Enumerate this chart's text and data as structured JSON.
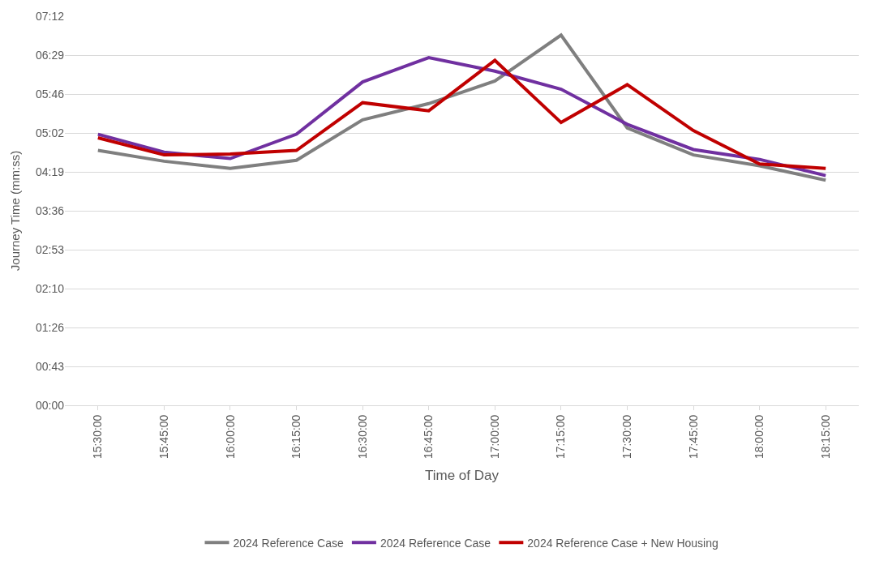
{
  "chart_data": {
    "type": "line",
    "xlabel": "Time of Day",
    "ylabel": "Journey Time (mm:ss)",
    "categories": [
      "15:30:00",
      "15:45:00",
      "16:00:00",
      "16:15:00",
      "16:30:00",
      "16:45:00",
      "17:00:00",
      "17:15:00",
      "17:30:00",
      "17:45:00",
      "18:00:00",
      "18:15:00"
    ],
    "series": [
      {
        "name": "2024 Reference Case",
        "color": "#7f7f7f",
        "values": [
          283,
          271,
          263,
          272,
          317,
          335,
          360,
          411,
          308,
          278,
          266,
          250
        ]
      },
      {
        "name": "2024 Reference Case",
        "color": "#7030a0",
        "values": [
          301,
          281,
          274,
          301,
          359,
          386,
          371,
          351,
          312,
          284,
          273,
          255
        ]
      },
      {
        "name": "2024 Reference Case + New Housing",
        "color": "#c00000",
        "values": [
          297,
          278,
          279,
          283,
          336,
          327,
          383,
          314,
          356,
          305,
          268,
          263
        ]
      }
    ],
    "ylim": [
      0,
      432
    ],
    "yticks": [
      {
        "value": 0,
        "label": "00:00"
      },
      {
        "value": 43.2,
        "label": "00:43"
      },
      {
        "value": 86.4,
        "label": "01:26"
      },
      {
        "value": 129.6,
        "label": "02:10"
      },
      {
        "value": 172.8,
        "label": "02:53"
      },
      {
        "value": 216,
        "label": "03:36"
      },
      {
        "value": 259.2,
        "label": "04:19"
      },
      {
        "value": 302.4,
        "label": "05:02"
      },
      {
        "value": 345.6,
        "label": "05:46"
      },
      {
        "value": 388.8,
        "label": "06:29"
      },
      {
        "value": 432,
        "label": "07:12"
      }
    ],
    "grid": "y",
    "legend": "bottom",
    "marker": "none",
    "line_style": "solid"
  }
}
